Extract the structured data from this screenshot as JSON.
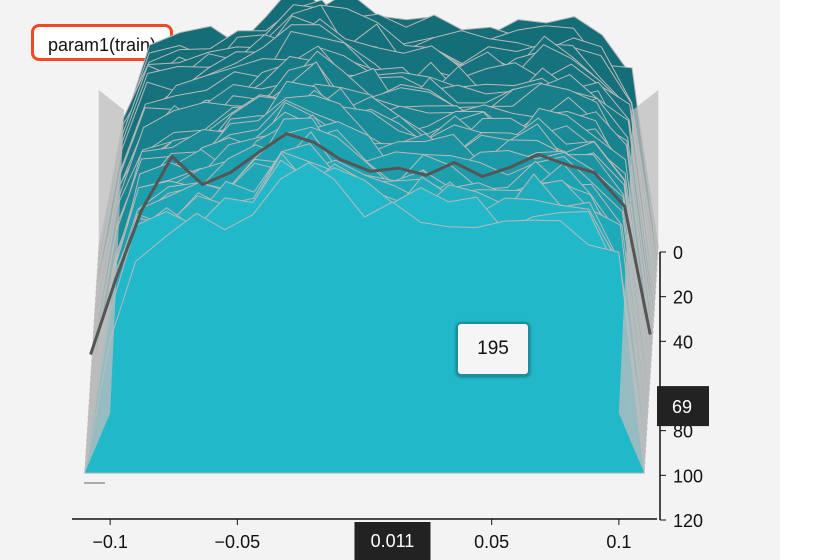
{
  "title": "param1(train)",
  "tooltip": {
    "value": "195"
  },
  "chart_data": {
    "type": "area",
    "title": "param1(train)",
    "xlabel": "",
    "ylabel": "",
    "xlim": [
      -0.115,
      0.115
    ],
    "ylim": [
      0,
      120
    ],
    "x_ticks": [
      -0.1,
      -0.05,
      0.05,
      0.1
    ],
    "x_tick_labels": [
      "−0.1",
      "−0.05",
      "0.05",
      "0.1"
    ],
    "y_ticks": [
      0,
      20,
      40,
      80,
      100,
      120
    ],
    "y_tick_labels": [
      "0",
      "20",
      "40",
      "80",
      "100",
      "120"
    ],
    "x_highlight": {
      "value": 0.011,
      "label": "0.011"
    },
    "y_highlight": {
      "value": 69,
      "label": "69"
    },
    "hover_step": 69,
    "hover_value": 195,
    "num_steps": 120,
    "colors": {
      "front_fill": "#21b8c9",
      "back_fill": "#146d77",
      "stroke": "#b9b9b9",
      "highlight_line": "#555555"
    },
    "bins_x": [
      -0.11,
      -0.1,
      -0.09,
      -0.078,
      -0.066,
      -0.055,
      -0.044,
      -0.033,
      -0.022,
      -0.012,
      0.0,
      0.011,
      0.022,
      0.033,
      0.044,
      0.055,
      0.066,
      0.077,
      0.088,
      0.1,
      0.11
    ],
    "front_profile": [
      0,
      150,
      230,
      245,
      250,
      262,
      274,
      298,
      300,
      290,
      276,
      262,
      268,
      262,
      260,
      258,
      270,
      262,
      246,
      210,
      0
    ],
    "highlight_profile": [
      60,
      250,
      420,
      555,
      485,
      515,
      565,
      612,
      590,
      548,
      518,
      526,
      508,
      540,
      505,
      528,
      560,
      535,
      515,
      430,
      110
    ]
  }
}
